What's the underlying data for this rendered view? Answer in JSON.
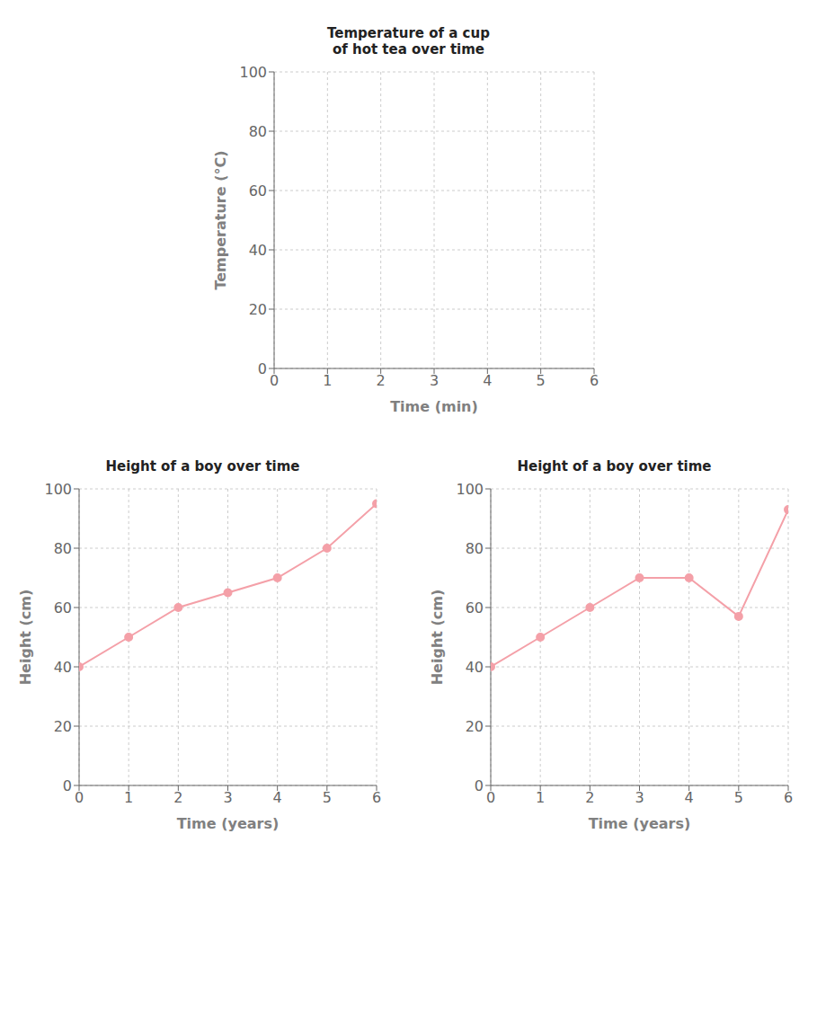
{
  "chart_data": [
    {
      "type": "line",
      "title": "Temperature of a cup\nof hot tea over time",
      "xlabel": "Time (min)",
      "ylabel": "Temperature (°C)",
      "xlim": [
        0,
        6
      ],
      "ylim": [
        0,
        100
      ],
      "xticks": [
        0,
        1,
        2,
        3,
        4,
        5,
        6
      ],
      "yticks": [
        0,
        20,
        40,
        60,
        80,
        100
      ],
      "grid": true
    },
    {
      "type": "line",
      "title": "Height of a boy over time",
      "xlabel": "Time (years)",
      "ylabel": "Height (cm)",
      "x": [
        0,
        1,
        2,
        3,
        4,
        5,
        6
      ],
      "values": [
        40,
        50,
        60,
        65,
        70,
        80,
        95
      ],
      "color": "#F4A0A8",
      "marker": "circle",
      "xlim": [
        0,
        6
      ],
      "ylim": [
        0,
        100
      ],
      "xticks": [
        0,
        1,
        2,
        3,
        4,
        5,
        6
      ],
      "yticks": [
        0,
        20,
        40,
        60,
        80,
        100
      ],
      "grid": true
    },
    {
      "type": "line",
      "title": "Height of a boy over time",
      "xlabel": "Time (years)",
      "ylabel": "Height (cm)",
      "x": [
        0,
        1,
        2,
        3,
        4,
        5,
        6
      ],
      "values": [
        40,
        50,
        60,
        70,
        70,
        57,
        93
      ],
      "color": "#F4A0A8",
      "marker": "circle",
      "xlim": [
        0,
        6
      ],
      "ylim": [
        0,
        100
      ],
      "xticks": [
        0,
        1,
        2,
        3,
        4,
        5,
        6
      ],
      "yticks": [
        0,
        20,
        40,
        60,
        80,
        100
      ],
      "grid": true
    }
  ]
}
